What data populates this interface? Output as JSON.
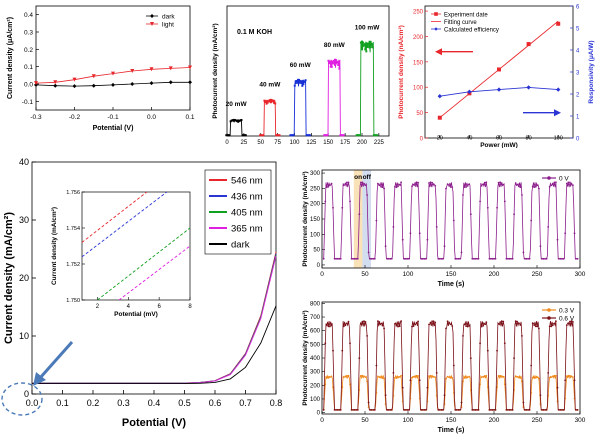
{
  "chart_data": [
    {
      "id": "a",
      "type": "line",
      "xlabel": "Potential (V)",
      "ylabel": "Current density (μA/cm²)",
      "xlim": [
        -0.3,
        0.1
      ],
      "ylim": [
        -0.15,
        0.45
      ],
      "xticks": [
        "-0.3",
        "-0.2",
        "-0.1",
        "0.0",
        "0.1"
      ],
      "yticks": [
        "0.4",
        "0.3",
        "0.2",
        "0.1",
        "0.0",
        "-0.1"
      ],
      "legend_position": "top-right",
      "series": [
        {
          "name": "dark",
          "color": "#000000",
          "marker": "diamond",
          "x": [
            -0.3,
            -0.25,
            -0.2,
            -0.15,
            -0.1,
            -0.05,
            0.0,
            0.05,
            0.1
          ],
          "y": [
            -0.005,
            -0.01,
            -0.012,
            -0.01,
            -0.005,
            0.0,
            0.005,
            0.01,
            0.01
          ]
        },
        {
          "name": "light",
          "color": "#e8262b",
          "marker": "triangle-down",
          "x": [
            -0.3,
            -0.25,
            -0.2,
            -0.15,
            -0.1,
            -0.05,
            0.0,
            0.05,
            0.1
          ],
          "y": [
            0.005,
            0.01,
            0.025,
            0.045,
            0.06,
            0.075,
            0.085,
            0.09,
            0.095
          ]
        }
      ]
    },
    {
      "id": "b",
      "type": "line",
      "xlabel": "Time (s)",
      "ylabel": "Photocurrent density (mA/cm²)",
      "annotation": "0.1 M KOH",
      "xlim": [
        0,
        240
      ],
      "ylim": [
        0,
        330
      ],
      "xticks": [
        "0",
        "25",
        "50",
        "75",
        "100",
        "125",
        "150",
        "175",
        "200",
        "225"
      ],
      "pulses": [
        {
          "label": "20 mW",
          "color": "#000000",
          "start": 5,
          "end": 22,
          "level": 40
        },
        {
          "label": "40 mW",
          "color": "#e8262b",
          "start": 55,
          "end": 72,
          "level": 90
        },
        {
          "label": "60 mW",
          "color": "#1630d6",
          "start": 100,
          "end": 117,
          "level": 140
        },
        {
          "label": "80 mW",
          "color": "#e020e0",
          "start": 150,
          "end": 168,
          "level": 190
        },
        {
          "label": "100 mW",
          "color": "#12a020",
          "start": 198,
          "end": 217,
          "level": 235
        }
      ]
    },
    {
      "id": "c",
      "type": "line",
      "xlabel": "Power (mW)",
      "ylabel_left": "Photocurrent density (nA/cm²)",
      "ylabel_right": "Responsivity (μA/W)",
      "xlim": [
        10,
        110
      ],
      "ylim_left": [
        0,
        260
      ],
      "ylim_right": [
        0,
        6
      ],
      "xticks": [
        "20",
        "40",
        "60",
        "80",
        "100"
      ],
      "yticks_left": [
        "0",
        "50",
        "100",
        "150",
        "200",
        "250"
      ],
      "yticks_right": [
        "0",
        "1",
        "2",
        "3",
        "4",
        "5",
        "6"
      ],
      "legend_position": "top-left",
      "series": [
        {
          "name": "Experiment date",
          "color": "#e8262b",
          "marker": "square",
          "axis": "left",
          "x": [
            20,
            40,
            60,
            80,
            100
          ],
          "y": [
            40,
            88,
            135,
            185,
            225
          ]
        },
        {
          "name": "Fitting curve",
          "color": "#e8262b",
          "marker": "none",
          "axis": "left",
          "x": [
            20,
            100
          ],
          "y": [
            40,
            230
          ]
        },
        {
          "name": "Calculated efficiency",
          "color": "#2b35d4",
          "marker": "diamond",
          "axis": "right",
          "x": [
            20,
            40,
            60,
            80,
            100
          ],
          "y": [
            1.9,
            2.1,
            2.2,
            2.3,
            2.2
          ]
        }
      ]
    },
    {
      "id": "d",
      "type": "line",
      "xlabel": "Potential (V)",
      "ylabel": "Current density (mA/cm²)",
      "xlim": [
        0.0,
        0.8
      ],
      "ylim": [
        0,
        40
      ],
      "xticks": [
        "0.0",
        "0.1",
        "0.2",
        "0.3",
        "0.4",
        "0.5",
        "0.6",
        "0.7",
        "0.8"
      ],
      "yticks": [
        "0",
        "10",
        "20",
        "30",
        "40"
      ],
      "legend_position": "top-right",
      "series": [
        {
          "name": "546 nm",
          "color": "#e8262b",
          "x": [
            0.0,
            0.1,
            0.2,
            0.3,
            0.4,
            0.5,
            0.55,
            0.6,
            0.65,
            0.7,
            0.75,
            0.8
          ],
          "y": [
            1.9,
            1.9,
            1.9,
            1.9,
            1.9,
            1.9,
            2.0,
            2.3,
            3.5,
            7,
            13.5,
            24.5
          ]
        },
        {
          "name": "436 nm",
          "color": "#2b35d4",
          "x": [
            0.0,
            0.1,
            0.2,
            0.3,
            0.4,
            0.5,
            0.55,
            0.6,
            0.65,
            0.7,
            0.75,
            0.8
          ],
          "y": [
            1.88,
            1.88,
            1.88,
            1.88,
            1.88,
            1.88,
            1.98,
            2.28,
            3.45,
            6.9,
            13.3,
            24.2
          ]
        },
        {
          "name": "405 nm",
          "color": "#12a020",
          "x": [
            0.0,
            0.1,
            0.2,
            0.3,
            0.4,
            0.5,
            0.55,
            0.6,
            0.65,
            0.7,
            0.75,
            0.8
          ],
          "y": [
            1.86,
            1.86,
            1.86,
            1.86,
            1.86,
            1.86,
            1.96,
            2.26,
            3.4,
            6.8,
            13.2,
            24.0
          ]
        },
        {
          "name": "365 nm",
          "color": "#e020e0",
          "x": [
            0.0,
            0.1,
            0.2,
            0.3,
            0.4,
            0.5,
            0.55,
            0.6,
            0.65,
            0.7,
            0.75,
            0.8
          ],
          "y": [
            1.85,
            1.85,
            1.85,
            1.85,
            1.85,
            1.85,
            1.95,
            2.25,
            3.35,
            6.7,
            13.0,
            23.8
          ]
        },
        {
          "name": "dark",
          "color": "#000000",
          "x": [
            0.0,
            0.1,
            0.2,
            0.3,
            0.4,
            0.5,
            0.55,
            0.6,
            0.65,
            0.7,
            0.75,
            0.8
          ],
          "y": [
            1.8,
            1.8,
            1.8,
            1.8,
            1.8,
            1.8,
            1.85,
            2.0,
            2.6,
            4.6,
            8.8,
            15.2
          ]
        }
      ],
      "inset": {
        "xlabel": "Potential (mV)",
        "ylabel": "Current density (mA/cm²)",
        "xlim": [
          1,
          8
        ],
        "ylim": [
          1.75,
          1.756
        ],
        "xticks": [
          "2",
          "4",
          "6",
          "8"
        ],
        "yticks": [
          "1.750",
          "1.752",
          "1.754",
          "1.756"
        ],
        "series": [
          {
            "name": "546 nm",
            "color": "#e8262b",
            "x": [
              1,
              5.2
            ],
            "y": [
              1.7532,
              1.756
            ]
          },
          {
            "name": "436 nm",
            "color": "#2b35d4",
            "x": [
              1,
              6.5
            ],
            "y": [
              1.7524,
              1.756
            ]
          },
          {
            "name": "405 nm",
            "color": "#12a020",
            "x": [
              2.0,
              8
            ],
            "y": [
              1.75,
              1.754
            ]
          },
          {
            "name": "365 nm",
            "color": "#e020e0",
            "x": [
              3.4,
              8
            ],
            "y": [
              1.75,
              1.753
            ]
          }
        ]
      }
    },
    {
      "id": "e",
      "type": "line",
      "xlabel": "Time (s)",
      "ylabel": "Photocurrent density (mA/cm²)",
      "xlim": [
        0,
        300
      ],
      "ylim": [
        -10,
        310
      ],
      "xticks": [
        "0",
        "50",
        "100",
        "150",
        "200",
        "250",
        "300"
      ],
      "yticks": [
        "0",
        "50",
        "100",
        "150",
        "200",
        "250",
        "300"
      ],
      "legend_position": "top-right",
      "annotations": [
        "on",
        "off"
      ],
      "period": 20,
      "series": [
        {
          "name": "0 V",
          "color": "#8c1e8c",
          "on_level": 270,
          "off_level": 20
        }
      ]
    },
    {
      "id": "f",
      "type": "line",
      "xlabel": "Time (s)",
      "ylabel": "Photocurrent density (mA/cm²)",
      "xlim": [
        0,
        300
      ],
      "ylim": [
        -10,
        810
      ],
      "xticks": [
        "0",
        "50",
        "100",
        "150",
        "200",
        "250",
        "300"
      ],
      "yticks": [
        "0",
        "100",
        "200",
        "300",
        "400",
        "500",
        "600",
        "700",
        "800"
      ],
      "legend_position": "top-right",
      "period": 20,
      "series": [
        {
          "name": "0.3 V",
          "color": "#f08a1c",
          "on_level": 270,
          "off_level": 20
        },
        {
          "name": "0.6 V",
          "color": "#7a1018",
          "on_level": 670,
          "off_level": 20
        }
      ]
    }
  ]
}
